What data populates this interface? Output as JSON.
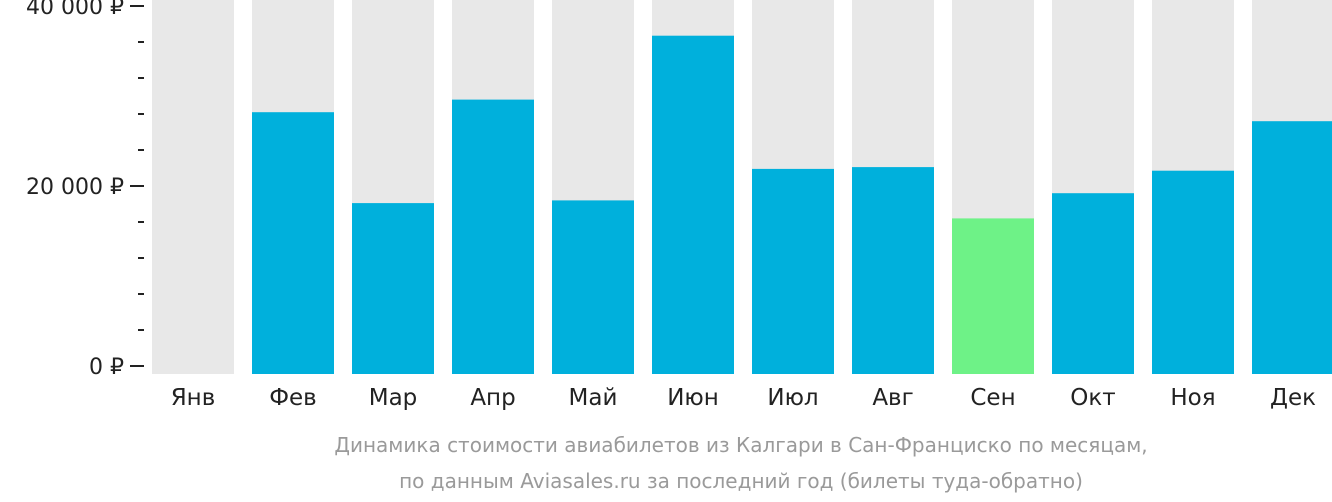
{
  "chart_data": {
    "type": "bar",
    "categories": [
      "Янв",
      "Фев",
      "Мар",
      "Апр",
      "Май",
      "Июн",
      "Июл",
      "Авг",
      "Сен",
      "Окт",
      "Ноя",
      "Дек"
    ],
    "values": [
      0,
      28200,
      18100,
      29600,
      18400,
      36700,
      21900,
      22100,
      16400,
      19200,
      21700,
      27200
    ],
    "ylim": [
      0,
      40000
    ],
    "yticks": [
      {
        "value": 0,
        "label": "0 ₽"
      },
      {
        "value": 20000,
        "label": "20 000 ₽"
      },
      {
        "value": 40000,
        "label": "40 000 ₽"
      }
    ],
    "minor_tick_step": 4000,
    "highlight_index": 8,
    "colors": {
      "bar": "#00b0dc",
      "highlight": "#6ef287",
      "background_bar": "#e8e8e8",
      "axis": "#222222"
    },
    "caption": [
      "Динамика стоимости авиабилетов из Калгари в Сан-Франциско по месяцам,",
      "по данным Aviasales.ru за последний год (билеты туда-обратно)"
    ],
    "grid": false
  }
}
